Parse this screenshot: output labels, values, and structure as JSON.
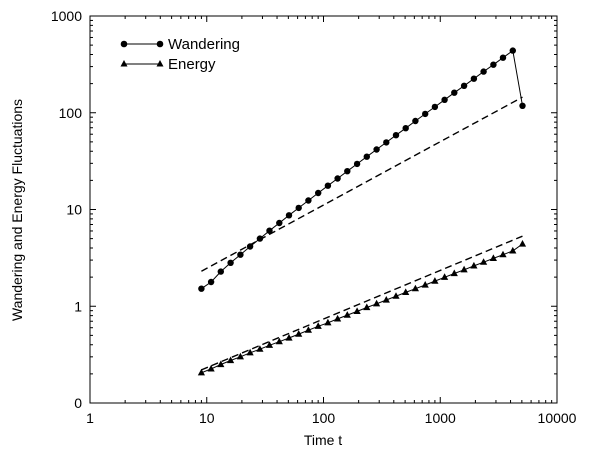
{
  "chart_data": {
    "type": "line",
    "xlabel": "Time t",
    "ylabel": "Wandering and Energy Fluctuations",
    "x_scale": "log",
    "y_scale": "log",
    "xlim": [
      1,
      10000
    ],
    "ylim": [
      0.1,
      1000
    ],
    "x_ticks": [
      1,
      10,
      100,
      1000,
      10000
    ],
    "x_tick_labels": [
      "1",
      "10",
      "100",
      "1000",
      "10000"
    ],
    "y_ticks": [
      0.1,
      1,
      10,
      100,
      1000
    ],
    "y_tick_labels": [
      "0",
      "1",
      "10",
      "100",
      "1000"
    ],
    "grid": false,
    "legend_position": "top-left",
    "series": [
      {
        "name": "Wandering",
        "marker": "circle",
        "color": "#000000",
        "x": [
          9,
          10.9,
          13.2,
          16,
          19.4,
          23.5,
          28.5,
          34.5,
          41.8,
          50.6,
          61.3,
          74.3,
          90,
          109,
          132,
          160,
          194,
          235,
          285,
          345,
          418,
          506,
          613,
          743,
          900,
          1090,
          1320,
          1600,
          1940,
          2350,
          2850,
          3450,
          4180,
          5060
        ],
        "y": [
          1.52,
          1.78,
          2.28,
          2.81,
          3.41,
          4.15,
          5.0,
          6.04,
          7.26,
          8.71,
          10.4,
          12.4,
          14.8,
          17.6,
          20.9,
          24.9,
          29.6,
          35.1,
          41.7,
          49.4,
          58.6,
          69.3,
          82.1,
          97.2,
          115,
          136,
          161,
          190,
          225,
          266,
          314,
          371,
          439,
          118
        ]
      },
      {
        "name": "Energy",
        "marker": "triangle",
        "color": "#000000",
        "x": [
          9,
          10.9,
          13.2,
          16,
          19.4,
          23.5,
          28.5,
          34.5,
          41.8,
          50.6,
          61.3,
          74.3,
          90,
          109,
          132,
          160,
          194,
          235,
          285,
          345,
          418,
          506,
          613,
          743,
          900,
          1090,
          1320,
          1600,
          1940,
          2350,
          2850,
          3450,
          4180,
          5060
        ],
        "y": [
          0.205,
          0.225,
          0.25,
          0.275,
          0.3,
          0.33,
          0.36,
          0.395,
          0.43,
          0.47,
          0.515,
          0.565,
          0.62,
          0.675,
          0.74,
          0.81,
          0.885,
          0.97,
          1.06,
          1.16,
          1.27,
          1.39,
          1.52,
          1.66,
          1.82,
          1.99,
          2.18,
          2.38,
          2.61,
          2.85,
          3.12,
          3.41,
          3.73,
          4.4
        ]
      }
    ],
    "reference_lines": [
      {
        "style": "dashed",
        "x": [
          9,
          5060
        ],
        "y": [
          2.3,
          145
        ]
      },
      {
        "style": "dashed",
        "x": [
          9,
          5060
        ],
        "y": [
          0.22,
          5.3
        ]
      }
    ]
  }
}
